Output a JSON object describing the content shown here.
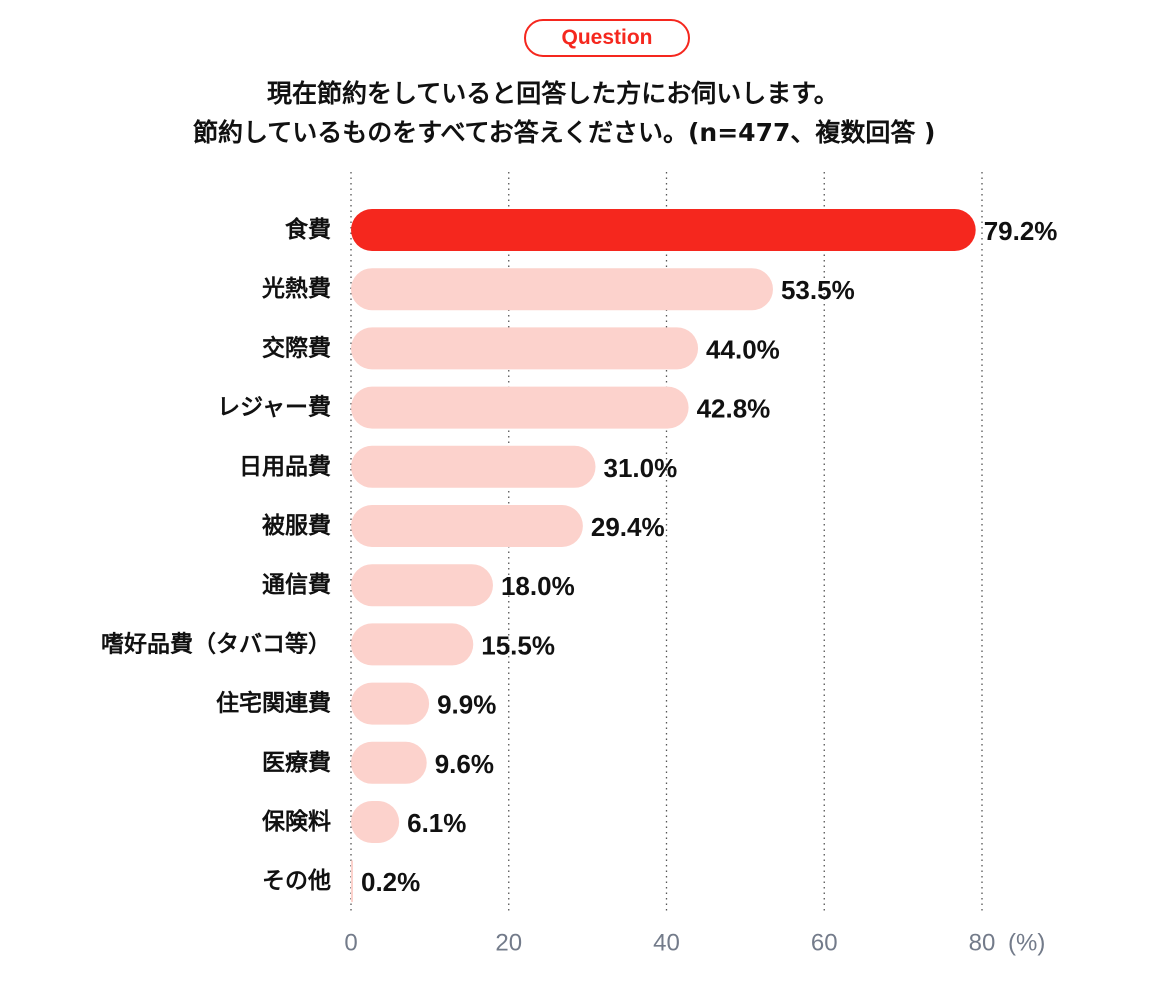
{
  "badge": {
    "label": "Question"
  },
  "title_lines": [
    "現在節約をしていると回答した方にお伺いします。",
    "節約しているものをすべてお答えください。(n=477、複数回答 )"
  ],
  "colors": {
    "highlight": "#f5271e",
    "bar": "#fcd2cc",
    "grid": "#555555",
    "tick": "#737b8a"
  },
  "chart_data": {
    "type": "bar",
    "orientation": "horizontal",
    "categories": [
      "食費",
      "光熱費",
      "交際費",
      "レジャー費",
      "日用品費",
      "被服費",
      "通信費",
      "嗜好品費（タバコ等）",
      "住宅関連費",
      "医療費",
      "保険料",
      "その他"
    ],
    "values": [
      79.2,
      53.5,
      44.0,
      42.8,
      31.0,
      29.4,
      18.0,
      15.5,
      9.9,
      9.6,
      6.1,
      0.2
    ],
    "value_labels": [
      "79.2%",
      "53.5%",
      "44.0%",
      "42.8%",
      "31.0%",
      "29.4%",
      "18.0%",
      "15.5%",
      "9.9%",
      "9.6%",
      "6.1%",
      "0.2%"
    ],
    "highlight_index": 0,
    "xlim": [
      0,
      80
    ],
    "xticks": [
      0,
      20,
      40,
      60,
      80
    ],
    "xtick_labels": [
      "0",
      "20",
      "40",
      "60",
      "80"
    ],
    "x_unit": "(%)",
    "grid": "dotted-vertical"
  }
}
